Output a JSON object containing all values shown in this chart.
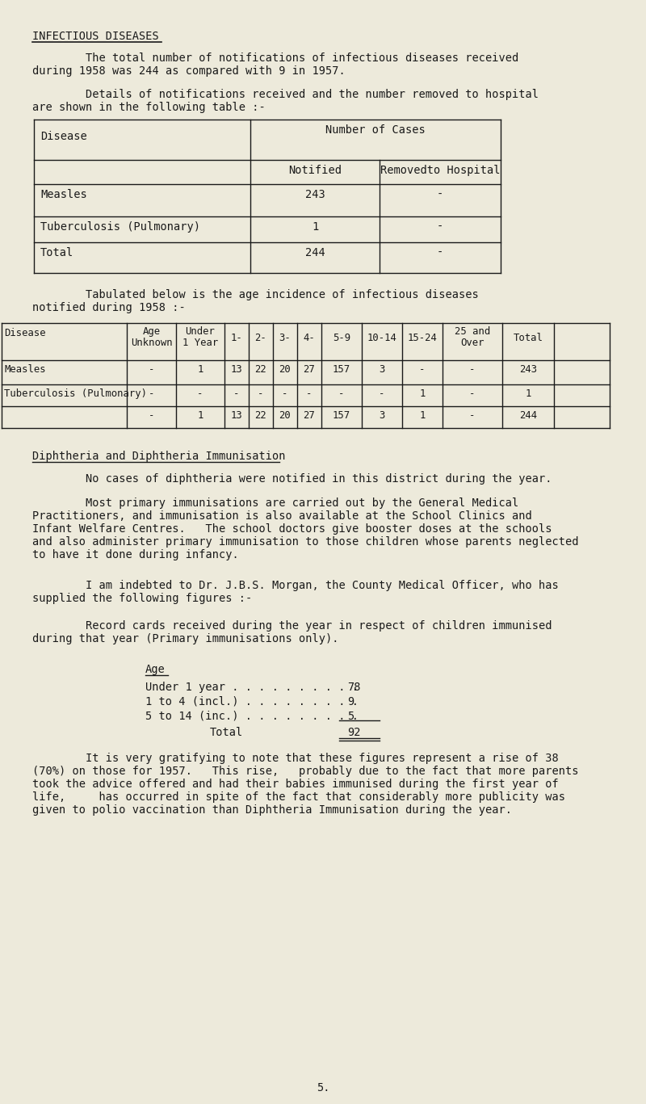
{
  "bg_color": "#edeadb",
  "text_color": "#1a1a1a",
  "title": "INFECTIOUS DISEASES",
  "para1_l1": "        The total number of notifications of infectious diseases received",
  "para1_l2": "during 1958 was 244 as compared with 9 in 1957.",
  "para2_l1": "        Details of notifications received and the number removed to hospital",
  "para2_l2": "are shown in the following table :-",
  "para3_l1": "        Tabulated below is the age incidence of infectious diseases",
  "para3_l2": "notified during 1958 :-",
  "section2_title": "Diphtheria and Diphtheria Immunisation",
  "para4": "        No cases of diphtheria were notified in this district during the year.",
  "para5_l1": "        Most primary immunisations are carried out by the General Medical",
  "para5_l2": "Practitioners, and immunisation is also available at the School Clinics and",
  "para5_l3": "Infant Welfare Centres.   The school doctors give booster doses at the schools",
  "para5_l4": "and also administer primary immunisation to those children whose parents neglected",
  "para5_l5": "to have it done during infancy.",
  "para6_l1": "        I am indebted to Dr. J.B.S. Morgan, the County Medical Officer, who has",
  "para6_l2": "supplied the following figures :-",
  "para7_l1": "        Record cards received during the year in respect of children immunised",
  "para7_l2": "during that year (Primary immunisations only).",
  "imm_age_label": "Age",
  "imm_r1_label": "Under 1 year . . . . . . . . . .",
  "imm_r1_val": "78",
  "imm_r2_label": "1 to 4 (incl.) . . . . . . . . .",
  "imm_r2_val": "9",
  "imm_r3_label": "5 to 14 (inc.) . . . . . . . . .",
  "imm_r3_val": "5",
  "imm_total_label": "Total",
  "imm_total_val": "92",
  "para8_l1": "        It is very gratifying to note that these figures represent a rise of 38",
  "para8_l2": "(70%) on those for 1957.   This rise,   probably due to the fact that more parents",
  "para8_l3": "took the advice offered and had their babies immunised during the first year of",
  "para8_l4": "life,     has occurred in spite of the fact that considerably more publicity was",
  "para8_l5": "given to polio vaccination than Diphtheria Immunisation during the year.",
  "page_number": "5.",
  "fs": 9.8,
  "fs_small": 8.8
}
